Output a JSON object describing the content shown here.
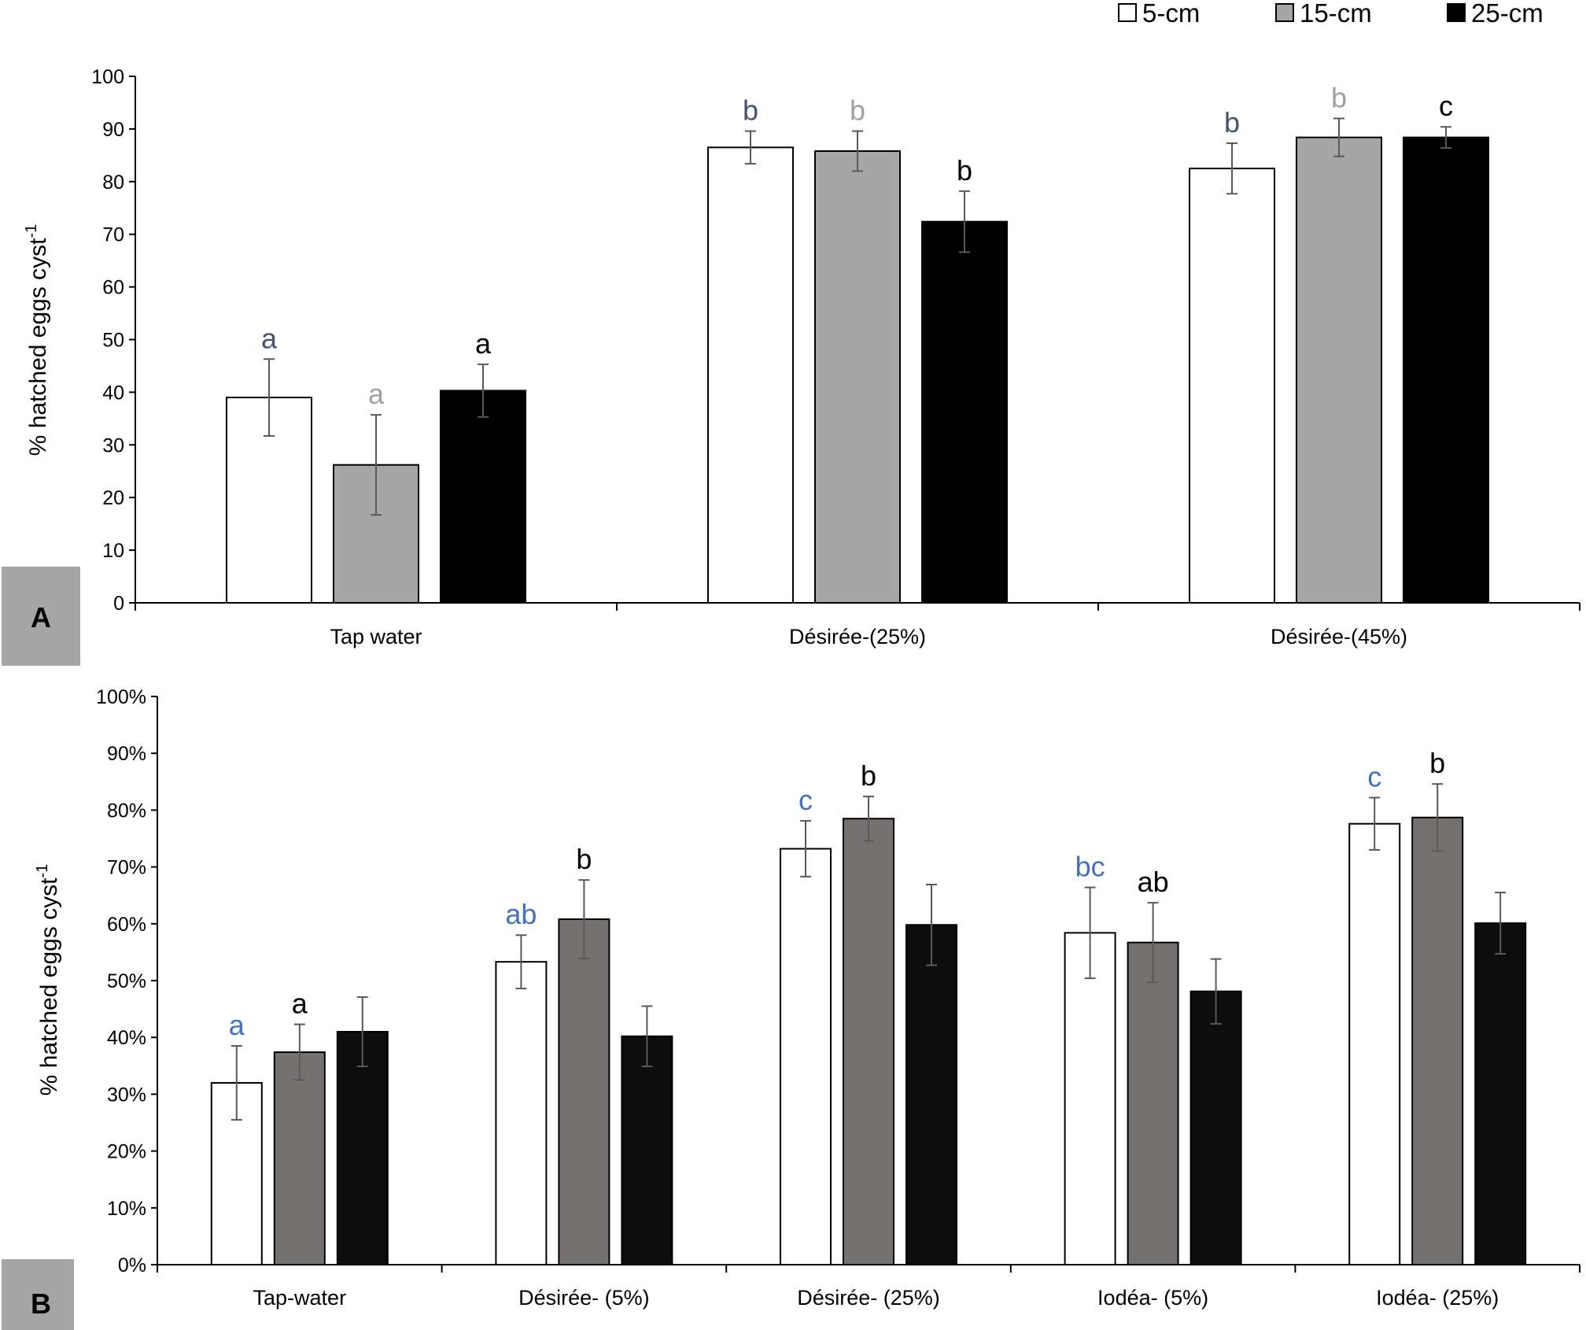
{
  "legend": [
    {
      "label": "5-cm",
      "color": "#ffffff"
    },
    {
      "label": "15-cm",
      "color": "#a6a6a6"
    },
    {
      "label": "25-cm",
      "color": "#000000"
    }
  ],
  "chart_data": [
    {
      "type": "bar",
      "panel": "A",
      "ylabel": "% hatched eggs cyst",
      "ylabel_sup": "-1",
      "ylim": [
        0,
        100
      ],
      "yticks": [
        "0",
        "10",
        "20",
        "30",
        "40",
        "50",
        "60",
        "70",
        "80",
        "90",
        "100"
      ],
      "categories": [
        "Tap water",
        "Désirée-(25%)",
        "Désirée-(45%)"
      ],
      "series": [
        {
          "name": "5-cm",
          "color": "#ffffff",
          "values": [
            39,
            86.5,
            82.5
          ],
          "errors": [
            7.3,
            3.1,
            4.8
          ],
          "letters": [
            "a",
            "b",
            "b"
          ],
          "letter_color": "#44546a"
        },
        {
          "name": "15-cm",
          "color": "#a6a6a6",
          "values": [
            26.2,
            85.8,
            88.4
          ],
          "errors": [
            9.5,
            3.8,
            3.6
          ],
          "letters": [
            "a",
            "b",
            "b"
          ],
          "letter_color": "#a0a0a0"
        },
        {
          "name": "25-cm",
          "color": "#000000",
          "values": [
            40.3,
            72.4,
            88.4
          ],
          "errors": [
            5.0,
            5.8,
            2.0
          ],
          "letters": [
            "a",
            "b",
            "c"
          ],
          "letter_color": "#000000"
        }
      ]
    },
    {
      "type": "bar",
      "panel": "B",
      "ylabel": "% hatched eggs cyst",
      "ylabel_sup": "-1",
      "ylim": [
        0,
        100
      ],
      "yticks": [
        "0%",
        "10%",
        "20%",
        "30%",
        "40%",
        "50%",
        "60%",
        "70%",
        "80%",
        "90%",
        "100%"
      ],
      "categories": [
        "Tap-water",
        "Désirée- (5%)",
        "Désirée- (25%)",
        "Iodéa- (5%)",
        "Iodéa- (25%)"
      ],
      "series": [
        {
          "name": "5-cm",
          "color": "#ffffff",
          "values": [
            32,
            53.3,
            73.2,
            58.4,
            77.6
          ],
          "errors": [
            6.5,
            4.7,
            4.9,
            8.0,
            4.6
          ],
          "letters": [
            "a",
            "ab",
            "c",
            "bc",
            "c"
          ],
          "letter_color": "#4472c4"
        },
        {
          "name": "15-cm",
          "color": "#767171",
          "values": [
            37.4,
            60.8,
            78.5,
            56.7,
            78.7
          ],
          "errors": [
            4.9,
            6.9,
            3.9,
            7.0,
            5.9
          ],
          "letters": [
            "a",
            "b",
            "b",
            "ab",
            "b"
          ],
          "letter_color": "#000000"
        },
        {
          "name": "25-cm",
          "color": "#0d0d0d",
          "values": [
            41,
            40.2,
            59.8,
            48.1,
            60.1
          ],
          "errors": [
            6.1,
            5.3,
            7.1,
            5.7,
            5.4
          ],
          "letters": [
            "",
            "",
            "",
            "",
            ""
          ],
          "letter_color": "#000000"
        }
      ]
    }
  ]
}
